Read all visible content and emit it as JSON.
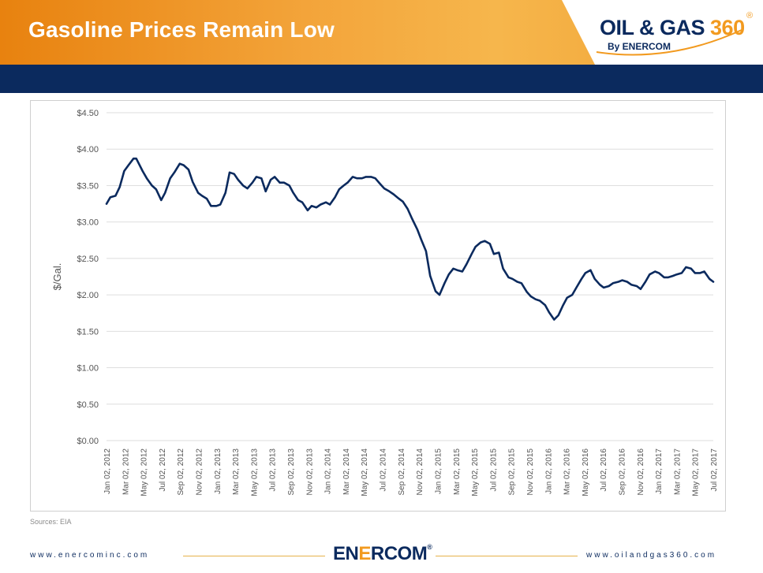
{
  "header": {
    "title": "Gasoline Prices Remain Low",
    "logo_main": "OIL & GAS ",
    "logo_360": "360",
    "logo_reg": "®",
    "logo_sub": "By ENERCOM"
  },
  "footer": {
    "left_url": "www.enercominc.com",
    "right_url": "www.oilandgas360.com",
    "logo_pre": "EN",
    "logo_mid": "E",
    "logo_post": "RCOM",
    "logo_reg": "®"
  },
  "colors": {
    "header_orange": "#f3a43a",
    "navy": "#0b2a5e",
    "accent_orange": "#f29a1f"
  },
  "source_note": "Sources: EIA",
  "chart_data": {
    "type": "line",
    "title": "",
    "xlabel": "",
    "ylabel": "$/Gal.",
    "ylim": [
      0,
      4.5
    ],
    "yticks": [
      {
        "value": 0,
        "label": "$0.00"
      },
      {
        "value": 0.5,
        "label": "$0.50"
      },
      {
        "value": 1.0,
        "label": "$1.00"
      },
      {
        "value": 1.5,
        "label": "$1.50"
      },
      {
        "value": 2.0,
        "label": "$2.00"
      },
      {
        "value": 2.5,
        "label": "$2.50"
      },
      {
        "value": 3.0,
        "label": "$3.00"
      },
      {
        "value": 3.5,
        "label": "$3.50"
      },
      {
        "value": 4.0,
        "label": "$4.00"
      },
      {
        "value": 4.5,
        "label": "$4.50"
      }
    ],
    "xticks": [
      "Jan 02, 2012",
      "Mar 02, 2012",
      "May 02, 2012",
      "Jul 02, 2012",
      "Sep 02, 2012",
      "Nov 02, 2012",
      "Jan 02, 2013",
      "Mar 02, 2013",
      "May 02, 2013",
      "Jul 02, 2013",
      "Sep 02, 2013",
      "Nov 02, 2013",
      "Jan 02, 2014",
      "Mar 02, 2014",
      "May 02, 2014",
      "Jul 02, 2014",
      "Sep 02, 2014",
      "Nov 02, 2014",
      "Jan 02, 2015",
      "Mar 02, 2015",
      "May 02, 2015",
      "Jul 02, 2015",
      "Sep 02, 2015",
      "Nov 02, 2015",
      "Jan 02, 2016",
      "Mar 02, 2016",
      "May 02, 2016",
      "Jul 02, 2016",
      "Sep 02, 2016",
      "Nov 02, 2016",
      "Jan 02, 2017",
      "Mar 02, 2017",
      "May 02, 2017",
      "Jul 02, 2017"
    ],
    "grid": true,
    "legend": "none",
    "line_color": "#0b2a5e",
    "series": [
      {
        "x": [
          "2012-01-02",
          "2012-01-15",
          "2012-02-01",
          "2012-02-15",
          "2012-03-01",
          "2012-03-15",
          "2012-04-01",
          "2012-04-10",
          "2012-05-01",
          "2012-05-15",
          "2012-06-01",
          "2012-06-15",
          "2012-07-02",
          "2012-07-15",
          "2012-08-01",
          "2012-08-15",
          "2012-09-02",
          "2012-09-15",
          "2012-10-01",
          "2012-10-15",
          "2012-11-02",
          "2012-11-15",
          "2012-12-01",
          "2012-12-15",
          "2013-01-02",
          "2013-01-15",
          "2013-02-01",
          "2013-02-15",
          "2013-03-02",
          "2013-03-15",
          "2013-04-01",
          "2013-04-15",
          "2013-05-02",
          "2013-05-15",
          "2013-06-01",
          "2013-06-15",
          "2013-07-02",
          "2013-07-15",
          "2013-08-01",
          "2013-08-15",
          "2013-09-02",
          "2013-09-15",
          "2013-10-01",
          "2013-10-15",
          "2013-11-02",
          "2013-11-15",
          "2013-12-01",
          "2013-12-15",
          "2014-01-02",
          "2014-01-15",
          "2014-02-01",
          "2014-02-15",
          "2014-03-02",
          "2014-03-15",
          "2014-04-01",
          "2014-04-15",
          "2014-05-02",
          "2014-05-15",
          "2014-06-01",
          "2014-06-15",
          "2014-07-02",
          "2014-07-15",
          "2014-08-01",
          "2014-08-15",
          "2014-09-02",
          "2014-09-15",
          "2014-10-01",
          "2014-10-15",
          "2014-11-02",
          "2014-11-15",
          "2014-12-01",
          "2014-12-15",
          "2015-01-02",
          "2015-01-15",
          "2015-02-01",
          "2015-02-15",
          "2015-03-02",
          "2015-03-15",
          "2015-04-01",
          "2015-04-15",
          "2015-05-02",
          "2015-05-15",
          "2015-06-01",
          "2015-06-15",
          "2015-07-02",
          "2015-07-15",
          "2015-08-01",
          "2015-08-15",
          "2015-09-02",
          "2015-09-15",
          "2015-10-01",
          "2015-10-15",
          "2015-11-02",
          "2015-11-15",
          "2015-12-01",
          "2015-12-15",
          "2016-01-02",
          "2016-01-15",
          "2016-02-01",
          "2016-02-15",
          "2016-03-02",
          "2016-03-15",
          "2016-04-01",
          "2016-04-15",
          "2016-05-02",
          "2016-05-15",
          "2016-06-01",
          "2016-06-15",
          "2016-07-02",
          "2016-07-15",
          "2016-08-01",
          "2016-08-15",
          "2016-09-02",
          "2016-09-15",
          "2016-10-01",
          "2016-10-15",
          "2016-11-02",
          "2016-11-15",
          "2016-12-01",
          "2016-12-15",
          "2017-01-02",
          "2017-01-15",
          "2017-02-01",
          "2017-02-15",
          "2017-03-02",
          "2017-03-15",
          "2017-04-01",
          "2017-04-15",
          "2017-05-02",
          "2017-05-15",
          "2017-06-01",
          "2017-06-15",
          "2017-07-02",
          "2017-07-15"
        ],
        "values": [
          3.25,
          3.34,
          3.36,
          3.48,
          3.7,
          3.78,
          3.87,
          3.87,
          3.7,
          3.6,
          3.5,
          3.45,
          3.3,
          3.4,
          3.6,
          3.68,
          3.8,
          3.78,
          3.72,
          3.55,
          3.4,
          3.36,
          3.32,
          3.22,
          3.22,
          3.24,
          3.4,
          3.68,
          3.66,
          3.58,
          3.5,
          3.46,
          3.54,
          3.62,
          3.6,
          3.42,
          3.58,
          3.62,
          3.54,
          3.54,
          3.5,
          3.4,
          3.3,
          3.27,
          3.16,
          3.22,
          3.2,
          3.24,
          3.27,
          3.24,
          3.34,
          3.45,
          3.5,
          3.54,
          3.62,
          3.6,
          3.6,
          3.62,
          3.62,
          3.6,
          3.52,
          3.46,
          3.42,
          3.38,
          3.32,
          3.28,
          3.18,
          3.05,
          2.9,
          2.76,
          2.6,
          2.26,
          2.05,
          2.0,
          2.16,
          2.28,
          2.36,
          2.34,
          2.32,
          2.42,
          2.56,
          2.66,
          2.72,
          2.74,
          2.7,
          2.56,
          2.58,
          2.36,
          2.24,
          2.22,
          2.18,
          2.16,
          2.04,
          1.98,
          1.94,
          1.92,
          1.86,
          1.76,
          1.66,
          1.72,
          1.86,
          1.96,
          2.0,
          2.1,
          2.22,
          2.3,
          2.34,
          2.22,
          2.14,
          2.1,
          2.12,
          2.16,
          2.18,
          2.2,
          2.18,
          2.14,
          2.12,
          2.08,
          2.18,
          2.28,
          2.32,
          2.3,
          2.24,
          2.24,
          2.26,
          2.28,
          2.3,
          2.38,
          2.36,
          2.3,
          2.3,
          2.32,
          2.22,
          2.18
        ]
      }
    ]
  }
}
